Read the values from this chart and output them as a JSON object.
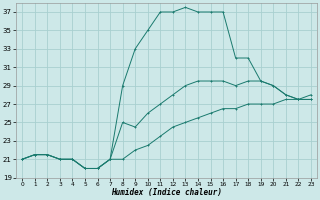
{
  "xlabel": "Humidex (Indice chaleur)",
  "bg_color": "#cde8e8",
  "grid_color": "#a8d0d0",
  "line_color": "#1a7a6e",
  "xlim": [
    -0.5,
    23.5
  ],
  "ylim": [
    19,
    38
  ],
  "xticks": [
    0,
    1,
    2,
    3,
    4,
    5,
    6,
    7,
    8,
    9,
    10,
    11,
    12,
    13,
    14,
    15,
    16,
    17,
    18,
    19,
    20,
    21,
    22,
    23
  ],
  "yticks": [
    19,
    21,
    23,
    25,
    27,
    29,
    31,
    33,
    35,
    37
  ],
  "line1_x": [
    0,
    1,
    2,
    3,
    4,
    5,
    6,
    7,
    8,
    9,
    10,
    11,
    12,
    13,
    14,
    15,
    16,
    17,
    18,
    19,
    20,
    21,
    22,
    23
  ],
  "line1_y": [
    21,
    21.5,
    21.5,
    21,
    21,
    20,
    20,
    21,
    29,
    33,
    35,
    37,
    37,
    37.5,
    37,
    37,
    37,
    32,
    32,
    29.5,
    29,
    28,
    27.5,
    27.5
  ],
  "line2_x": [
    0,
    1,
    2,
    3,
    4,
    5,
    6,
    7,
    8,
    9,
    10,
    11,
    12,
    13,
    14,
    15,
    16,
    17,
    18,
    19,
    20,
    21,
    22,
    23
  ],
  "line2_y": [
    21,
    21.5,
    21.5,
    21,
    21,
    20,
    20,
    21,
    25,
    24.5,
    26,
    27,
    28,
    29,
    29.5,
    29.5,
    29.5,
    29,
    29.5,
    29.5,
    29,
    28,
    27.5,
    27.5
  ],
  "line3_x": [
    0,
    1,
    2,
    3,
    4,
    5,
    6,
    7,
    8,
    9,
    10,
    11,
    12,
    13,
    14,
    15,
    16,
    17,
    18,
    19,
    20,
    21,
    22,
    23
  ],
  "line3_y": [
    21,
    21.5,
    21.5,
    21,
    21,
    20,
    20,
    21,
    21,
    22,
    22.5,
    23.5,
    24.5,
    25,
    25.5,
    26,
    26.5,
    26.5,
    27,
    27,
    27,
    27.5,
    27.5,
    28
  ]
}
